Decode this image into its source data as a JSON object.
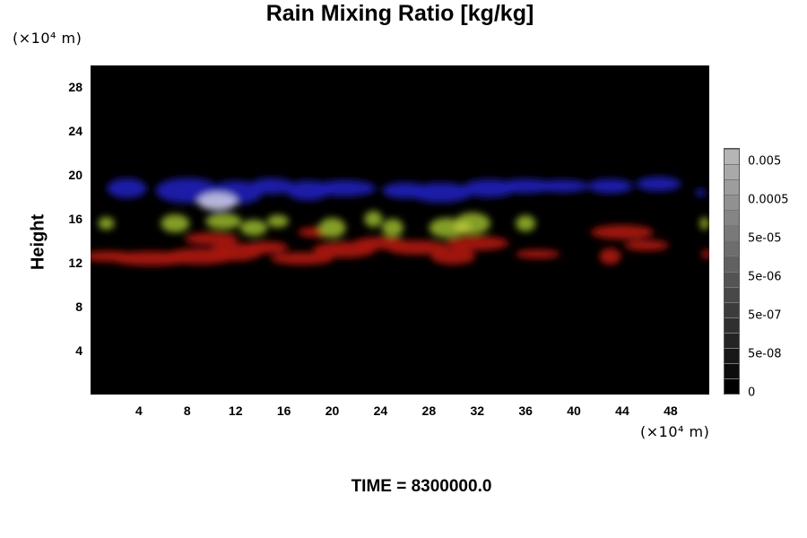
{
  "title": "Rain Mixing Ratio [kg/kg]",
  "footer": "TIME = 8300000.0",
  "chart_data": {
    "type": "heatmap",
    "title": "Rain Mixing Ratio [kg/kg]",
    "xlabel": "",
    "ylabel": "Height",
    "x_unit": "(×10⁴ m)",
    "y_unit": "(×10⁴ m)",
    "xlim": [
      0,
      51.2
    ],
    "ylim": [
      0,
      30
    ],
    "x_ticks": [
      "4",
      "8",
      "12",
      "16",
      "20",
      "24",
      "28",
      "32",
      "36",
      "40",
      "44",
      "48"
    ],
    "y_ticks": [
      "4",
      "8",
      "12",
      "16",
      "20",
      "24",
      "28"
    ],
    "colorbar": {
      "labels": [
        "0",
        "5e-08",
        "5e-07",
        "5e-06",
        "5e-05",
        "0.0005",
        "0.005"
      ],
      "levels": 16,
      "colors": [
        "#000000",
        "#b5b5b5"
      ]
    },
    "background": "#000000",
    "features": [
      {
        "band": "upper",
        "color": "#1a1fb0",
        "y_range": [
          16.5,
          20.0
        ],
        "x_range": [
          1.0,
          51.2
        ]
      },
      {
        "band": "middle",
        "color": "#8aa628",
        "y_range": [
          14.0,
          16.8
        ],
        "x_range": [
          0,
          51.2
        ]
      },
      {
        "band": "lower",
        "color": "#a8170f",
        "y_range": [
          11.5,
          15.5
        ],
        "x_range": [
          0,
          51.2
        ]
      }
    ]
  }
}
